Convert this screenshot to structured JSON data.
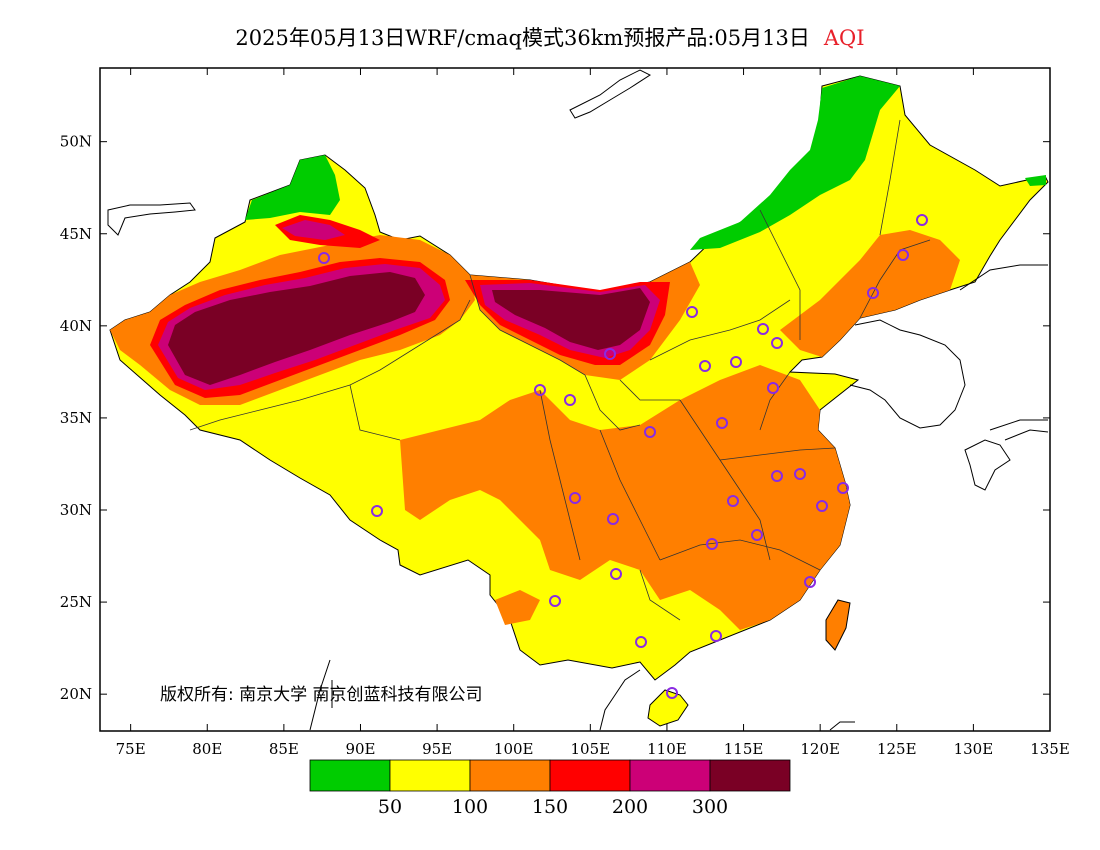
{
  "header": {
    "title": "2025年05月13日WRF/cmaq模式36km预报产品:05月13日",
    "variable": "AQI"
  },
  "map": {
    "lon_ticks": [
      "75E",
      "80E",
      "85E",
      "90E",
      "95E",
      "100E",
      "105E",
      "110E",
      "115E",
      "120E",
      "125E",
      "130E",
      "135E"
    ],
    "lat_ticks": [
      "20N",
      "25N",
      "30N",
      "35N",
      "40N",
      "45N",
      "50N"
    ],
    "lon_range": [
      73,
      135
    ],
    "lat_range": [
      18,
      54
    ],
    "colors": {
      "good": "#00cc00",
      "moderate": "#ffff00",
      "usg": "#ff7f00",
      "unhealthy": "#ff0000",
      "very_unhealthy": "#cc0077",
      "hazardous": "#7a0025",
      "station_ring": "#8a2be2"
    }
  },
  "legend": {
    "labels": [
      "50",
      "100",
      "150",
      "200",
      "300"
    ],
    "colors": [
      "#00cc00",
      "#ffff00",
      "#ff7f00",
      "#ff0000",
      "#cc0077",
      "#7a0025"
    ]
  },
  "copyright": "版权所有: 南京大学 南京创蓝科技有限公司"
}
